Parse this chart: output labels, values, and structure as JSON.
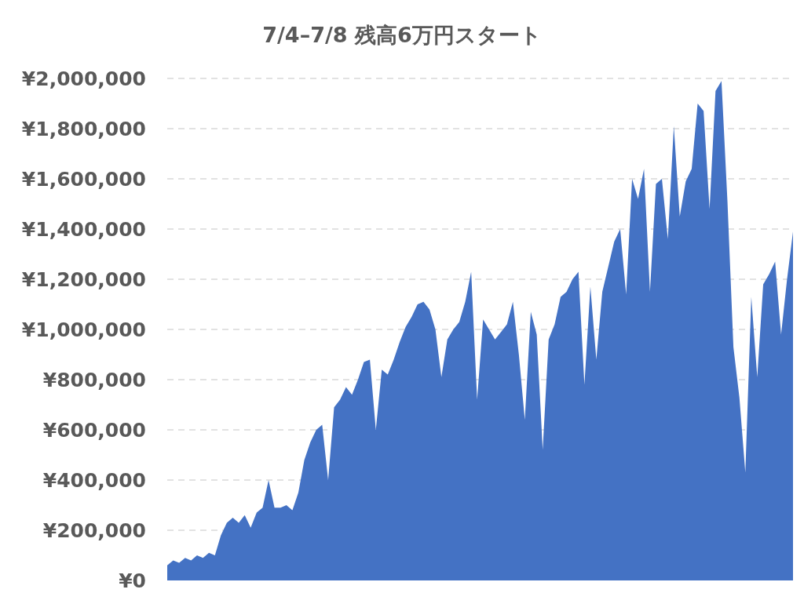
{
  "chart_data": {
    "type": "area",
    "title": "7/4–7/8 残高6万円スタート",
    "categories": [
      null,
      null,
      null,
      null,
      null,
      null,
      null,
      null,
      null,
      null,
      null,
      null,
      null,
      null,
      null,
      null,
      null,
      null,
      null,
      null,
      null,
      null,
      null,
      null,
      null,
      null,
      null,
      null,
      null,
      null,
      null,
      null,
      null,
      null,
      null,
      null,
      null,
      null,
      null,
      null,
      null,
      null,
      null,
      null,
      null,
      null,
      null,
      null,
      null,
      null,
      null,
      null,
      null,
      null,
      null,
      null,
      null,
      null,
      null,
      null,
      null,
      null,
      null,
      null,
      null,
      null,
      null,
      null,
      null,
      null,
      null,
      null,
      null,
      null,
      null,
      null,
      null,
      null,
      null,
      null,
      null,
      null,
      null,
      null,
      null,
      null,
      null,
      null,
      null,
      null,
      null,
      null,
      null,
      null,
      null,
      null,
      null,
      null,
      null,
      null,
      null,
      null,
      null,
      null,
      null,
      null
    ],
    "values": [
      60000,
      80000,
      70000,
      90000,
      80000,
      100000,
      90000,
      110000,
      100000,
      180000,
      230000,
      250000,
      230000,
      260000,
      210000,
      270000,
      290000,
      400000,
      290000,
      290000,
      300000,
      280000,
      350000,
      480000,
      550000,
      600000,
      620000,
      400000,
      690000,
      720000,
      770000,
      740000,
      800000,
      870000,
      880000,
      600000,
      840000,
      820000,
      880000,
      950000,
      1010000,
      1050000,
      1100000,
      1110000,
      1080000,
      1000000,
      810000,
      960000,
      1000000,
      1030000,
      1110000,
      1230000,
      720000,
      1040000,
      1000000,
      960000,
      990000,
      1020000,
      1110000,
      900000,
      640000,
      1070000,
      980000,
      520000,
      960000,
      1020000,
      1130000,
      1150000,
      1200000,
      1230000,
      780000,
      1170000,
      880000,
      1150000,
      1250000,
      1350000,
      1400000,
      1140000,
      1600000,
      1520000,
      1640000,
      1150000,
      1580000,
      1600000,
      1360000,
      1810000,
      1450000,
      1590000,
      1640000,
      1900000,
      1870000,
      1480000,
      1950000,
      1990000,
      1510000,
      930000,
      730000,
      430000,
      1130000,
      810000,
      1180000,
      1220000,
      1270000,
      980000,
      1200000,
      1390000
    ],
    "color": "#4472c4",
    "ylim": [
      0,
      2000000
    ],
    "yticks": [
      {
        "value": 0,
        "label": "¥0"
      },
      {
        "value": 200000,
        "label": "¥200,000"
      },
      {
        "value": 400000,
        "label": "¥400,000"
      },
      {
        "value": 600000,
        "label": "¥600,000"
      },
      {
        "value": 800000,
        "label": "¥800,000"
      },
      {
        "value": 1000000,
        "label": "¥1,000,000"
      },
      {
        "value": 1200000,
        "label": "¥1,200,000"
      },
      {
        "value": 1400000,
        "label": "¥1,400,000"
      },
      {
        "value": 1600000,
        "label": "¥1,600,000"
      },
      {
        "value": 1800000,
        "label": "¥1,800,000"
      },
      {
        "value": 2000000,
        "label": "¥2,000,000"
      }
    ],
    "grid": "y"
  }
}
